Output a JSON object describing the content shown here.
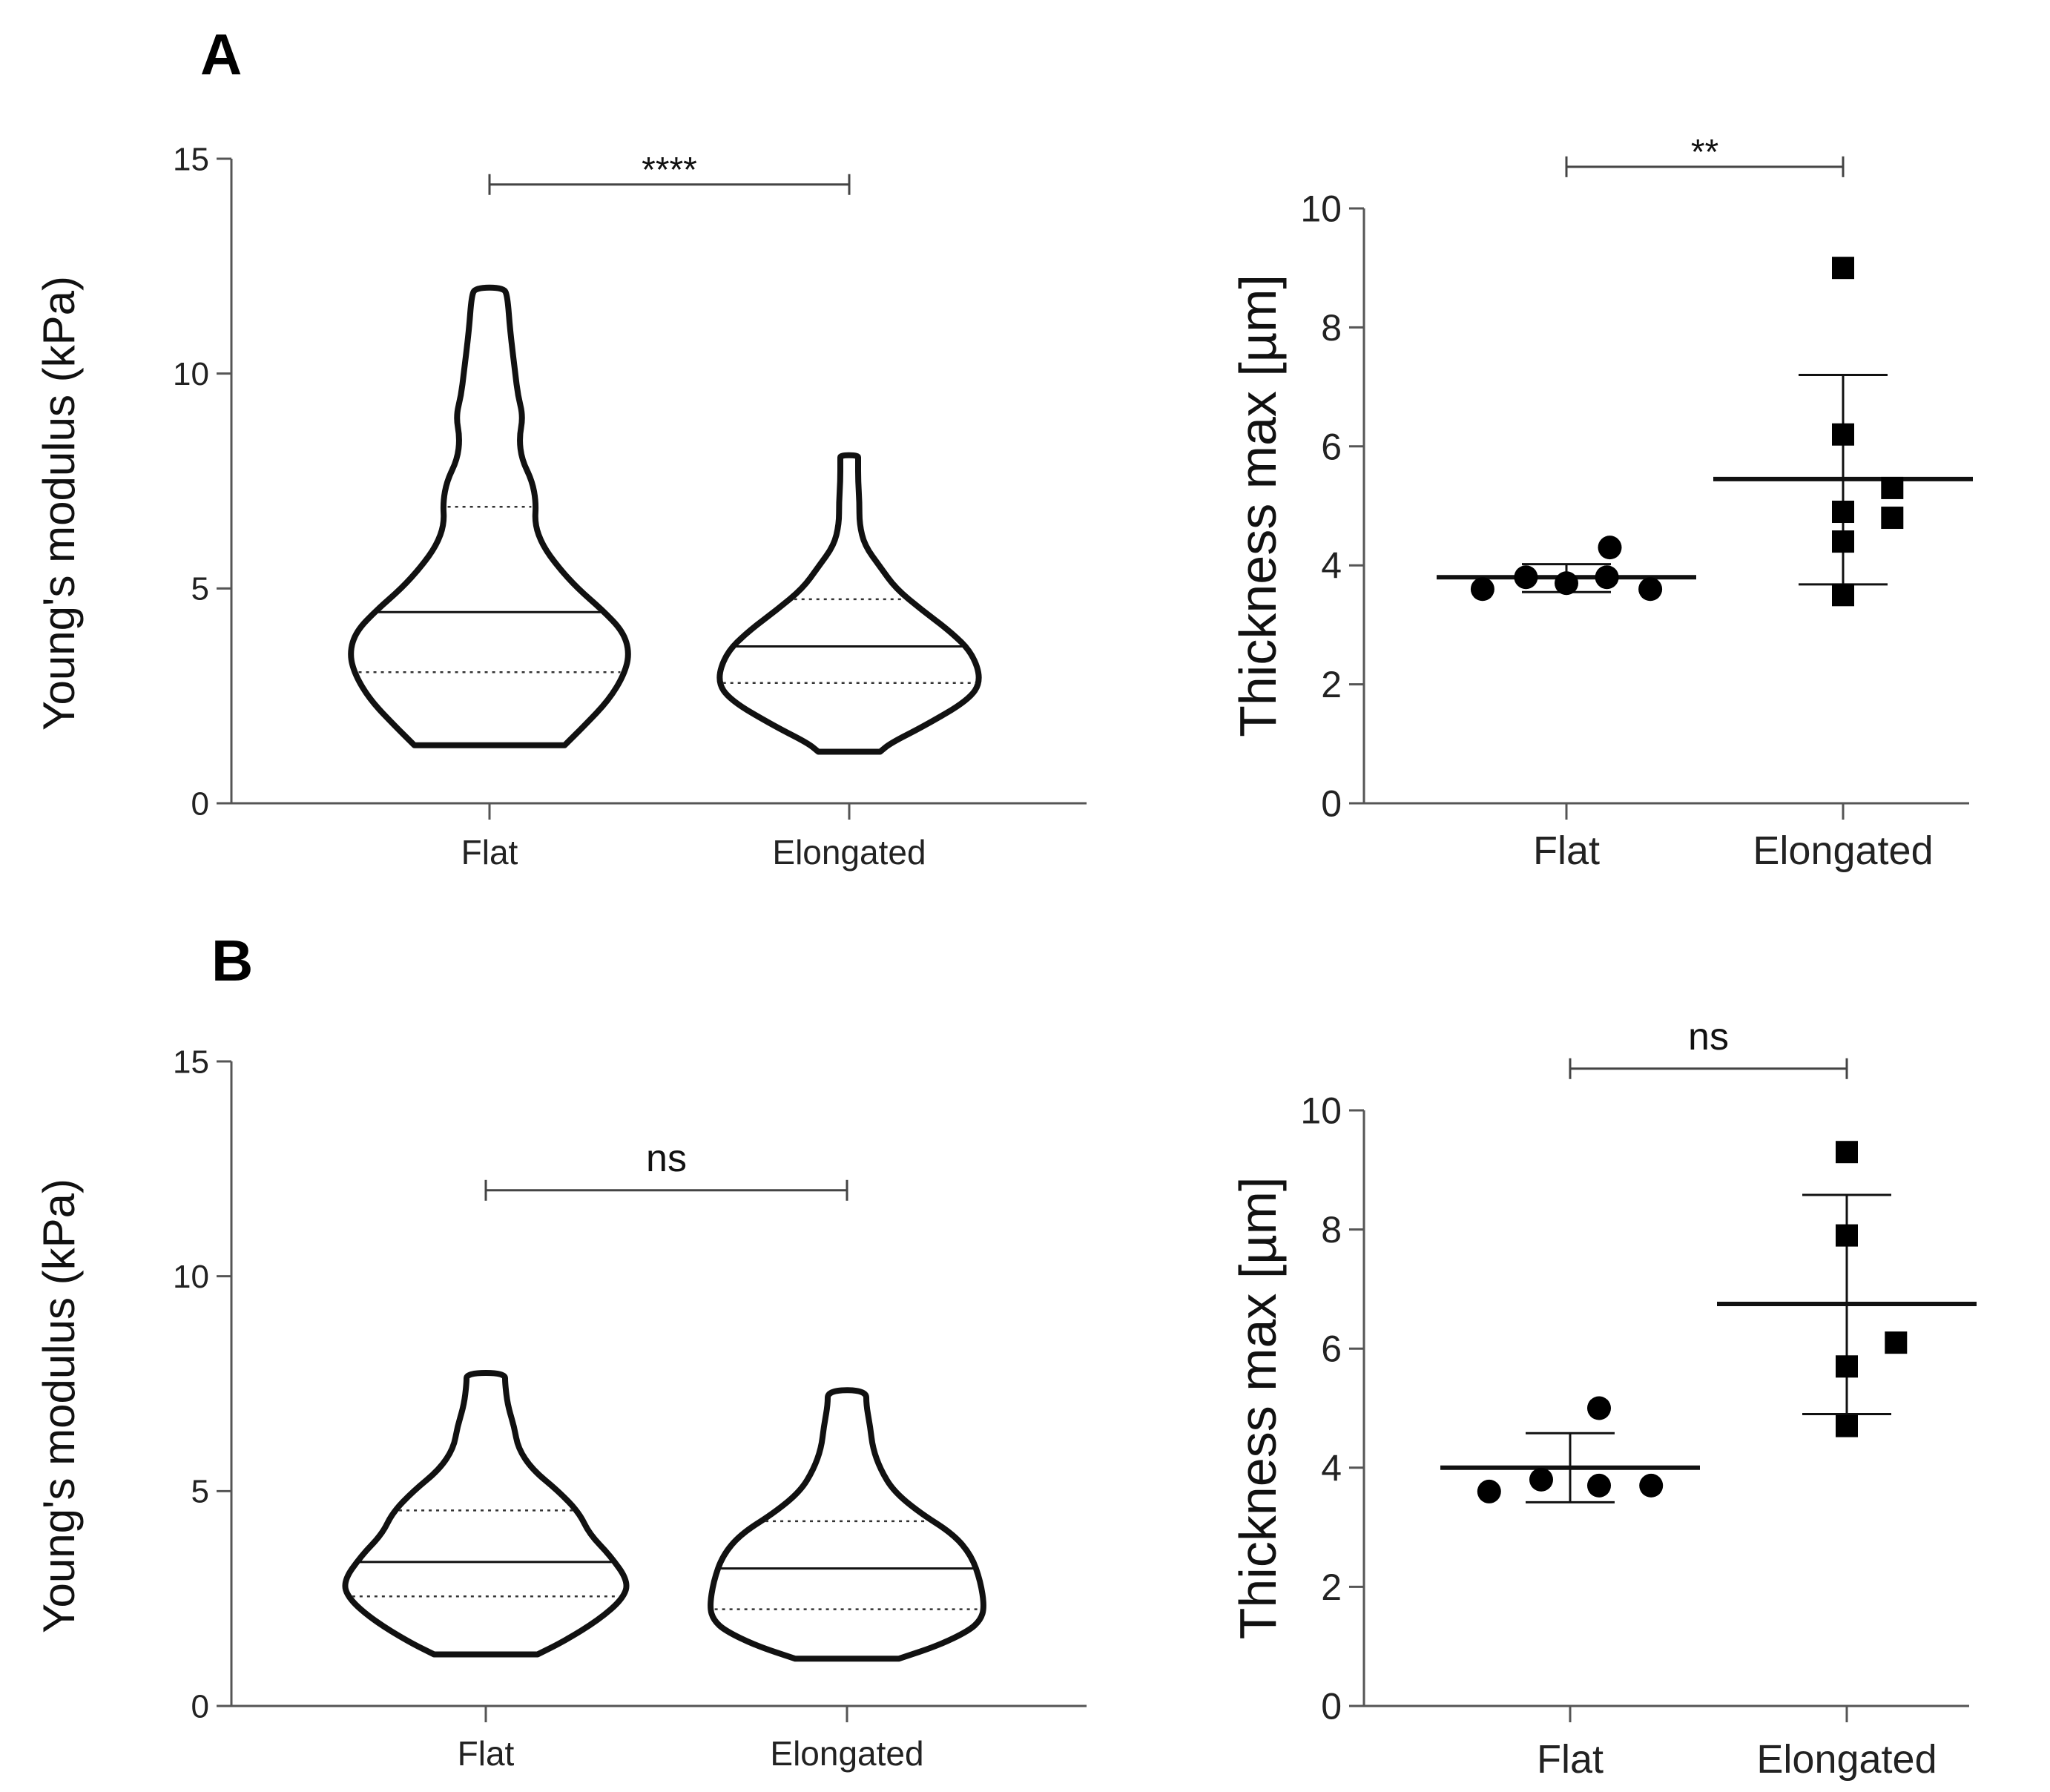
{
  "panels": [
    {
      "label": "A"
    },
    {
      "label": "B"
    }
  ],
  "chart_data": [
    {
      "panel": "A",
      "type": "violin",
      "title": "",
      "xlabel": "",
      "ylabel": "Young's modulus (kPa)",
      "ylim": [
        0,
        15
      ],
      "yticks": [
        0,
        5,
        10,
        15
      ],
      "categories": [
        "Flat",
        "Elongated"
      ],
      "violins": [
        {
          "name": "Flat",
          "min": 1.35,
          "q1": 3.05,
          "median": 4.45,
          "q3": 6.9,
          "max": 12.0,
          "profile": [
            [
              1.35,
              0.38
            ],
            [
              1.8,
              0.53
            ],
            [
              2.4,
              0.72
            ],
            [
              3.0,
              0.84
            ],
            [
              3.5,
              0.88
            ],
            [
              4.0,
              0.83
            ],
            [
              4.5,
              0.67
            ],
            [
              5.0,
              0.48
            ],
            [
              5.5,
              0.33
            ],
            [
              6.0,
              0.21
            ],
            [
              6.5,
              0.15
            ],
            [
              7.0,
              0.16
            ],
            [
              7.5,
              0.13
            ],
            [
              8.0,
              0.05
            ],
            [
              8.5,
              0.03
            ],
            [
              9.0,
              0.06
            ],
            [
              9.5,
              0.02
            ],
            [
              10.0,
              0.0
            ],
            [
              11.0,
              -0.04
            ],
            [
              11.8,
              -0.06
            ],
            [
              12.0,
              -0.09
            ]
          ]
        },
        {
          "name": "Elongated",
          "min": 1.2,
          "q1": 2.8,
          "median": 3.65,
          "q3": 4.75,
          "max": 8.1,
          "profile": [
            [
              1.2,
              0.04
            ],
            [
              1.4,
              0.12
            ],
            [
              1.8,
              0.38
            ],
            [
              2.4,
              0.72
            ],
            [
              2.85,
              0.82
            ],
            [
              3.5,
              0.75
            ],
            [
              4.0,
              0.58
            ],
            [
              4.5,
              0.36
            ],
            [
              5.0,
              0.16
            ],
            [
              5.5,
              0.04
            ],
            [
              6.0,
              -0.08
            ],
            [
              6.5,
              -0.12
            ],
            [
              7.0,
              -0.12
            ],
            [
              7.5,
              -0.13
            ],
            [
              8.0,
              -0.13
            ],
            [
              8.1,
              -0.13
            ]
          ]
        }
      ],
      "significance": {
        "label": "****",
        "between": [
          "Flat",
          "Elongated"
        ],
        "y": 14.4
      }
    },
    {
      "panel": "A",
      "type": "scatter",
      "title": "",
      "xlabel": "",
      "ylabel": "Thickness max [µm]",
      "ylim": [
        0,
        10
      ],
      "yticks": [
        0,
        2,
        4,
        6,
        8,
        10
      ],
      "categories": [
        "Flat",
        "Elongated"
      ],
      "series": [
        {
          "name": "Flat",
          "marker": "circle",
          "points": [
            [
              -0.29,
              3.6
            ],
            [
              -0.14,
              3.8
            ],
            [
              0.0,
              3.7
            ],
            [
              0.14,
              3.8
            ],
            [
              0.29,
              3.6
            ],
            [
              0.15,
              4.3
            ]
          ],
          "mean": 3.8,
          "sd_low": 3.55,
          "sd_high": 4.02
        },
        {
          "name": "Elongated",
          "marker": "square",
          "points": [
            [
              0.0,
              9.0
            ],
            [
              0.0,
              6.2
            ],
            [
              0.0,
              4.9
            ],
            [
              0.0,
              4.4
            ],
            [
              0.0,
              3.5
            ],
            [
              0.17,
              5.3
            ],
            [
              0.17,
              4.8
            ]
          ],
          "mean": 5.45,
          "sd_low": 3.68,
          "sd_high": 7.2
        }
      ],
      "significance": {
        "label": "**",
        "between": [
          "Flat",
          "Elongated"
        ],
        "y": 10.7
      }
    },
    {
      "panel": "B",
      "type": "violin",
      "title": "",
      "xlabel": "",
      "ylabel": "Young's modulus (kPa)",
      "ylim": [
        0,
        15
      ],
      "yticks": [
        0,
        5,
        10,
        15
      ],
      "categories": [
        "Flat",
        "Elongated"
      ],
      "violins": [
        {
          "name": "Flat",
          "min": 1.2,
          "q1": 2.55,
          "median": 3.35,
          "q3": 4.55,
          "max": 7.75,
          "profile": [
            [
              1.2,
              0.2
            ],
            [
              1.5,
              0.4
            ],
            [
              2.0,
              0.67
            ],
            [
              2.5,
              0.86
            ],
            [
              2.9,
              0.9
            ],
            [
              3.5,
              0.76
            ],
            [
              4.0,
              0.6
            ],
            [
              4.5,
              0.52
            ],
            [
              5.0,
              0.36
            ],
            [
              5.5,
              0.16
            ],
            [
              6.0,
              0.05
            ],
            [
              6.5,
              0.02
            ],
            [
              7.0,
              -0.03
            ],
            [
              7.5,
              -0.05
            ],
            [
              7.75,
              -0.05
            ]
          ]
        },
        {
          "name": "Elongated",
          "min": 1.1,
          "q1": 2.25,
          "median": 3.2,
          "q3": 4.3,
          "max": 7.35,
          "profile": [
            [
              1.1,
              0.2
            ],
            [
              1.4,
              0.5
            ],
            [
              1.75,
              0.74
            ],
            [
              2.0,
              0.83
            ],
            [
              2.3,
              0.86
            ],
            [
              2.9,
              0.83
            ],
            [
              3.5,
              0.76
            ],
            [
              4.0,
              0.62
            ],
            [
              4.5,
              0.36
            ],
            [
              5.0,
              0.16
            ],
            [
              5.5,
              0.06
            ],
            [
              6.0,
              0.0
            ],
            [
              6.5,
              -0.02
            ],
            [
              7.0,
              -0.05
            ],
            [
              7.35,
              -0.05
            ]
          ]
        }
      ],
      "significance": {
        "label": "ns",
        "between": [
          "Flat",
          "Elongated"
        ],
        "y": 12.0
      }
    },
    {
      "panel": "B",
      "type": "scatter",
      "title": "",
      "xlabel": "",
      "ylabel": "Thickness max [µm]",
      "ylim": [
        0,
        10
      ],
      "yticks": [
        0,
        2,
        4,
        6,
        8,
        10
      ],
      "categories": [
        "Flat",
        "Elongated"
      ],
      "series": [
        {
          "name": "Flat",
          "marker": "circle",
          "points": [
            [
              -0.28,
              3.6
            ],
            [
              -0.1,
              3.8
            ],
            [
              0.1,
              3.7
            ],
            [
              0.28,
              3.7
            ],
            [
              0.1,
              5.0
            ]
          ],
          "mean": 4.0,
          "sd_low": 3.42,
          "sd_high": 4.58
        },
        {
          "name": "Elongated",
          "marker": "square",
          "points": [
            [
              0.0,
              9.3
            ],
            [
              0.0,
              7.9
            ],
            [
              0.0,
              5.7
            ],
            [
              0.0,
              4.7
            ],
            [
              0.17,
              6.1
            ]
          ],
          "mean": 6.75,
          "sd_low": 4.9,
          "sd_high": 8.58
        }
      ],
      "significance": {
        "label": "ns",
        "between": [
          "Flat",
          "Elongated"
        ],
        "y": 10.7
      }
    }
  ]
}
